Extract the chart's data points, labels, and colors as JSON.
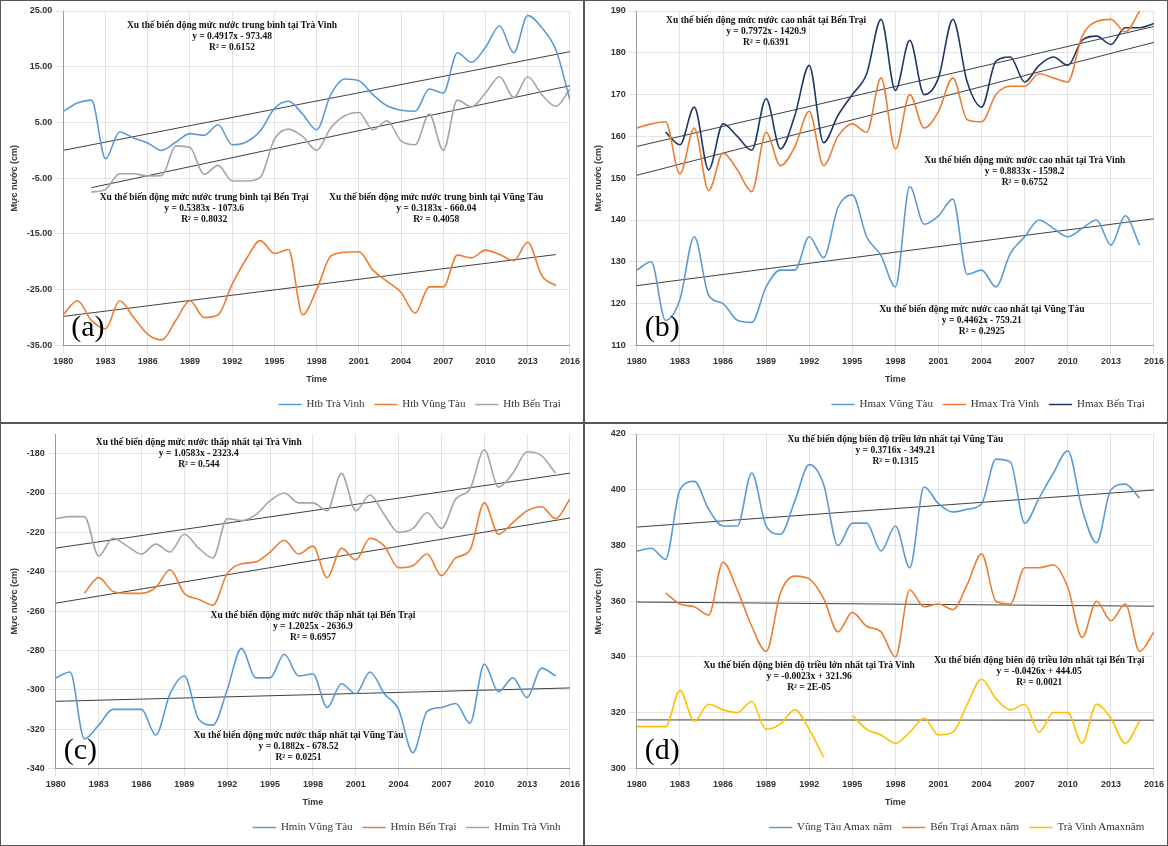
{
  "chart_data": [
    {
      "type": "line",
      "xlabel": "Time",
      "ylabel": "Mực nước (cm)",
      "x": [
        1980,
        1981,
        1982,
        1983,
        1984,
        1985,
        1986,
        1987,
        1988,
        1989,
        1990,
        1991,
        1992,
        1993,
        1994,
        1995,
        1996,
        1997,
        1998,
        1999,
        2000,
        2001,
        2002,
        2003,
        2004,
        2005,
        2006,
        2007,
        2008,
        2009,
        2010,
        2011,
        2012,
        2013,
        2014,
        2015,
        2016
      ],
      "xlim": [
        1980,
        2016
      ],
      "xticks": [
        1980,
        1983,
        1986,
        1989,
        1992,
        1995,
        1998,
        2001,
        2004,
        2007,
        2010,
        2013,
        2016
      ],
      "ylim": [
        -35,
        25
      ],
      "yticks": [
        {
          "value": -35,
          "label": "-35.00"
        },
        {
          "value": -25,
          "label": "-25.00"
        },
        {
          "value": -15,
          "label": "-15.00"
        },
        {
          "value": -5,
          "label": "-5.00"
        },
        {
          "value": 5,
          "label": "5.00"
        },
        {
          "value": 15,
          "label": "15.00"
        },
        {
          "value": 25,
          "label": "25.00"
        }
      ],
      "grid": true,
      "legend": "bottom",
      "marker": "none",
      "line_style": "solid",
      "series": [
        {
          "name": "Htb Trà Vinh",
          "color": "#5b9bd5",
          "values": [
            7,
            8.5,
            9,
            -1.5,
            3.3,
            2.2,
            1.3,
            0,
            1.5,
            3,
            2.7,
            4.6,
            1,
            1.5,
            3.5,
            7.5,
            8.8,
            6.5,
            3.7,
            10,
            12.8,
            12.5,
            10,
            8,
            7.2,
            7,
            11,
            10.3,
            17.5,
            15.8,
            18.5,
            22.3,
            17.5,
            24.2,
            22,
            18,
            9
          ]
        },
        {
          "name": "Htb Vũng Tàu",
          "color": "#ed7d31",
          "values": [
            -29.5,
            -27,
            -30.5,
            -32,
            -27,
            -30,
            -33,
            -34,
            -30.5,
            -27,
            -30,
            -29.5,
            -24,
            -19.5,
            -16.2,
            -18.5,
            -17.8,
            -29.5,
            -25,
            -19,
            -18.3,
            -18.2,
            -21.5,
            -23.5,
            -25.5,
            -29.2,
            -24.5,
            -24.5,
            -18.8,
            -19.3,
            -17.9,
            -18.7,
            -19.8,
            -16.5,
            -22.5,
            -24.3,
            null
          ]
        },
        {
          "name": "Htb Bến Trại",
          "color": "#a5a5a5",
          "values": [
            null,
            null,
            -7.5,
            -7,
            -4.2,
            -4.2,
            -4.6,
            -4.5,
            0.8,
            0.5,
            -4.3,
            -2.7,
            -5.5,
            -5.5,
            -4.8,
            2,
            3.8,
            2.5,
            0,
            4,
            6.2,
            6.8,
            3.7,
            5.3,
            1.7,
            1,
            6.5,
            0,
            9,
            7.8,
            10.3,
            13.2,
            9.5,
            13.2,
            10,
            7.9,
            11
          ]
        },
        {
          "type": "line",
          "color": "#404040",
          "x": [
            1980,
            2016
          ],
          "values": [
            0,
            17.7
          ]
        },
        {
          "type": "line",
          "color": "#404040",
          "x": [
            1982,
            2016
          ],
          "values": [
            -6.7,
            11.6
          ]
        },
        {
          "type": "line",
          "color": "#404040",
          "x": [
            1980,
            2015
          ],
          "values": [
            -29.8,
            -18.7
          ]
        }
      ],
      "annotations": [
        "Xu thế biến động mức nước trung bình tại Trà Vinh\ny = 0.4917x - 973.48\nR² = 0.6152",
        "Xu thế biến động mức nước trung bình tại Bến Trại\ny = 0.5383x - 1073.6\nR² = 0.8032",
        "Xu thế biến động mức nước trung bình tại Vũng Tàu\ny = 0.3183x - 660.04\nR² = 0.4058",
        "(a)"
      ]
    },
    {
      "type": "line",
      "xlabel": "Time",
      "ylabel": "Mực nước (cm)",
      "x": [
        1980,
        1981,
        1982,
        1983,
        1984,
        1985,
        1986,
        1987,
        1988,
        1989,
        1990,
        1991,
        1992,
        1993,
        1994,
        1995,
        1996,
        1997,
        1998,
        1999,
        2000,
        2001,
        2002,
        2003,
        2004,
        2005,
        2006,
        2007,
        2008,
        2009,
        2010,
        2011,
        2012,
        2013,
        2014,
        2015,
        2016
      ],
      "xlim": [
        1980,
        2016
      ],
      "xticks": [
        1980,
        1983,
        1986,
        1989,
        1992,
        1995,
        1998,
        2001,
        2004,
        2007,
        2010,
        2013,
        2016
      ],
      "ylim": [
        110,
        190
      ],
      "yticks": [
        110,
        120,
        130,
        140,
        150,
        160,
        170,
        180,
        190
      ],
      "grid": true,
      "legend": "bottom",
      "marker": "none",
      "line_style": "solid",
      "series": [
        {
          "name": "Hmax Vũng Tàu",
          "color": "#5b9bd5",
          "values": [
            128,
            130,
            116,
            121,
            136,
            122,
            120,
            116,
            115.5,
            124,
            128,
            128,
            136,
            131,
            143,
            146,
            136,
            131.5,
            124,
            148,
            139,
            141,
            145,
            127,
            128,
            124,
            132,
            136,
            140,
            138,
            136,
            138,
            140,
            134,
            141,
            134,
            null
          ]
        },
        {
          "name": "Hmax Trà Vinh",
          "color": "#ed7d31",
          "values": [
            162,
            163,
            163.5,
            151,
            162,
            147,
            156,
            152,
            146.8,
            161,
            153,
            157.5,
            166,
            153,
            160,
            163,
            161,
            174,
            157,
            170,
            162,
            166,
            174,
            164,
            163.5,
            170,
            172,
            172,
            175,
            174,
            173,
            184,
            187.5,
            188,
            185,
            190,
            null
          ]
        },
        {
          "name": "Hmax Bến Trại",
          "color": "#1f3864",
          "values": [
            null,
            null,
            161,
            158,
            167,
            152,
            163,
            160,
            156.7,
            169,
            157,
            165,
            177,
            158.5,
            165,
            170,
            175,
            188,
            171,
            183,
            170,
            174,
            188,
            173,
            167,
            178,
            179,
            173,
            177,
            179,
            177,
            183,
            184,
            182,
            186,
            186,
            187
          ]
        },
        {
          "type": "line",
          "color": "#404040",
          "x": [
            1980,
            2016
          ],
          "values": [
            157.6,
            186.3
          ]
        },
        {
          "type": "line",
          "color": "#404040",
          "x": [
            1980,
            2016
          ],
          "values": [
            150.7,
            182.5
          ]
        },
        {
          "type": "line",
          "color": "#404040",
          "x": [
            1980,
            2016
          ],
          "values": [
            124.3,
            140.3
          ]
        }
      ],
      "annotations": [
        "Xu thế biến động mức nước cao nhất tại Bến Trại\ny = 0.7972x - 1420.9\nR² = 0.6391",
        "Xu thế biến động mức nước cao nhất tại Trà Vinh\ny = 0.8833x - 1598.2\nR² = 0.6752",
        "Xu thế biến động mức nước cao nhất tại Vũng Tàu\ny = 0.4462x - 759.21\nR² = 0.2925",
        "(b)"
      ]
    },
    {
      "type": "line",
      "xlabel": "Time",
      "ylabel": "Mực nước (cm)",
      "x": [
        1980,
        1981,
        1982,
        1983,
        1984,
        1985,
        1986,
        1987,
        1988,
        1989,
        1990,
        1991,
        1992,
        1993,
        1994,
        1995,
        1996,
        1997,
        1998,
        1999,
        2000,
        2001,
        2002,
        2003,
        2004,
        2005,
        2006,
        2007,
        2008,
        2009,
        2010,
        2011,
        2012,
        2013,
        2014,
        2015,
        2016
      ],
      "xlim": [
        1980,
        2016
      ],
      "xticks": [
        1980,
        1983,
        1986,
        1989,
        1992,
        1995,
        1998,
        2001,
        2004,
        2007,
        2010,
        2013,
        2016
      ],
      "ylim": [
        -340,
        -170
      ],
      "yticks": [
        -340,
        -320,
        -300,
        -280,
        -260,
        -240,
        -220,
        -200,
        -180
      ],
      "grid": true,
      "legend": "bottom",
      "marker": "none",
      "line_style": "solid",
      "series": [
        {
          "name": "Hmin Vũng Tàu",
          "color": "#5b9bd5",
          "values": [
            -294,
            -291,
            -325,
            -318,
            -310,
            -310,
            -310,
            -323,
            -302,
            -293,
            -315,
            -318,
            -300,
            -279,
            -294,
            -294,
            -282,
            -293,
            -292,
            -309,
            -297,
            -302,
            -291,
            -302,
            -310,
            -332,
            -311,
            -309,
            -307,
            -317,
            -287,
            -301,
            -294,
            -304,
            -289,
            -293,
            null
          ]
        },
        {
          "name": "Hmin Bến Trại",
          "color": "#ed7d31",
          "values": [
            null,
            null,
            -251,
            -243,
            -250,
            -251,
            -251,
            -248,
            -239,
            -251,
            -254,
            -257,
            -241,
            -236,
            -235,
            -230,
            -224,
            -231,
            -227,
            -243,
            -228,
            -234,
            -223,
            -227,
            -238,
            -237,
            -231,
            -242,
            -233,
            -229,
            -205,
            -221,
            -215,
            -209,
            -207,
            -213,
            -203
          ]
        },
        {
          "name": "Hmin Trà Vinh",
          "color": "#a5a5a5",
          "values": [
            -213,
            -212,
            -212,
            -232,
            -223,
            -227,
            -231,
            -226,
            -230,
            -221,
            -228,
            -233,
            -213,
            -214,
            -211,
            -204,
            -200,
            -205,
            -205,
            -209,
            -190,
            -209,
            -201,
            -211,
            -220,
            -218,
            -210,
            -218,
            -203,
            -198,
            -178,
            -197,
            -190,
            -179,
            -181,
            -190,
            null
          ]
        },
        {
          "type": "line",
          "color": "#404040",
          "x": [
            1980,
            2016
          ],
          "values": [
            -228,
            -189.9
          ]
        },
        {
          "type": "line",
          "color": "#404040",
          "x": [
            1980,
            2016
          ],
          "values": [
            -256,
            -212.7
          ]
        },
        {
          "type": "line",
          "color": "#404040",
          "x": [
            1980,
            2016
          ],
          "values": [
            -305.9,
            -299.1
          ]
        }
      ],
      "annotations": [
        "Xu thế biến động mức nước thấp nhất tại Trà Vinh\ny = 1.0583x - 2323.4\nR² = 0.544",
        "Xu thế biến động mức nước thấp nhất tại Bến Trại\ny = 1.2025x - 2636.9\nR² = 0.6957",
        "Xu thế biến động mức nước thấp nhất tại Vũng Tàu\ny = 0.1882x - 678.52\nR² = 0.0251",
        "(c)"
      ]
    },
    {
      "type": "line",
      "xlabel": "Time",
      "ylabel": "Mực nước (cm)",
      "x": [
        1980,
        1981,
        1982,
        1983,
        1984,
        1985,
        1986,
        1987,
        1988,
        1989,
        1990,
        1991,
        1992,
        1993,
        1994,
        1995,
        1996,
        1997,
        1998,
        1999,
        2000,
        2001,
        2002,
        2003,
        2004,
        2005,
        2006,
        2007,
        2008,
        2009,
        2010,
        2011,
        2012,
        2013,
        2014,
        2015,
        2016
      ],
      "xlim": [
        1980,
        2016
      ],
      "xticks": [
        1980,
        1983,
        1986,
        1989,
        1992,
        1995,
        1998,
        2001,
        2004,
        2007,
        2010,
        2013,
        2016
      ],
      "ylim": [
        300,
        420
      ],
      "yticks": [
        300,
        320,
        340,
        360,
        380,
        400,
        420
      ],
      "grid": true,
      "legend": "bottom",
      "marker": "none",
      "line_style": "solid",
      "series": [
        {
          "name": "Vũng Tàu Amax năm",
          "color": "#5b9bd5",
          "values": [
            378,
            379,
            375,
            400,
            403,
            393,
            387,
            387,
            406,
            387,
            384,
            396,
            409,
            402,
            380,
            388,
            388,
            378,
            387,
            372,
            401,
            395,
            392,
            393,
            395,
            411,
            410,
            388,
            397,
            406,
            414,
            393,
            381,
            400,
            402,
            397,
            null
          ]
        },
        {
          "name": "Bến Trại Amax năm",
          "color": "#ed7d31",
          "values": [
            null,
            null,
            363,
            359,
            358,
            355,
            374,
            364,
            351,
            342,
            363,
            369,
            368,
            361,
            349,
            356,
            351,
            349,
            340,
            364,
            358,
            359,
            357,
            366,
            377,
            360,
            359,
            372,
            372,
            373,
            365,
            347,
            360,
            353,
            359,
            342,
            349
          ]
        },
        {
          "name": "Trà Vinh Amaxnăm",
          "color": "#ffc000",
          "values": [
            315,
            315,
            315,
            328,
            317,
            323,
            321,
            320,
            324,
            314,
            316,
            321,
            314,
            304,
            null,
            319,
            314,
            312,
            309,
            313,
            318,
            312,
            313,
            323,
            332,
            325,
            321,
            323,
            313,
            320,
            320,
            309,
            323,
            318,
            309,
            317,
            null
          ]
        },
        {
          "type": "line",
          "color": "#404040",
          "x": [
            1980,
            2016
          ],
          "values": [
            386.6,
            399.9
          ]
        },
        {
          "type": "line",
          "color": "#404040",
          "x": [
            1980,
            2016
          ],
          "values": [
            359.7,
            358.2
          ]
        },
        {
          "type": "line",
          "color": "#404040",
          "x": [
            1980,
            2016
          ],
          "values": [
            317.4,
            317.3
          ]
        }
      ],
      "annotations": [
        "Xu thế biến động biên độ triều lớn nhất tại Vũng Tàu\ny = 0.3716x - 349.21\nR² = 0.1315",
        "Xu thế biến động biên độ triều lớn nhất tại Bến Trại\ny = -0.0426x + 444.05\nR² = 0.0021",
        "Xu thế biến động biên độ triều lớn nhất tại Trà Vinh\ny = -0.0023x + 321.96\nR² = 2E-05",
        "(d)"
      ]
    }
  ]
}
